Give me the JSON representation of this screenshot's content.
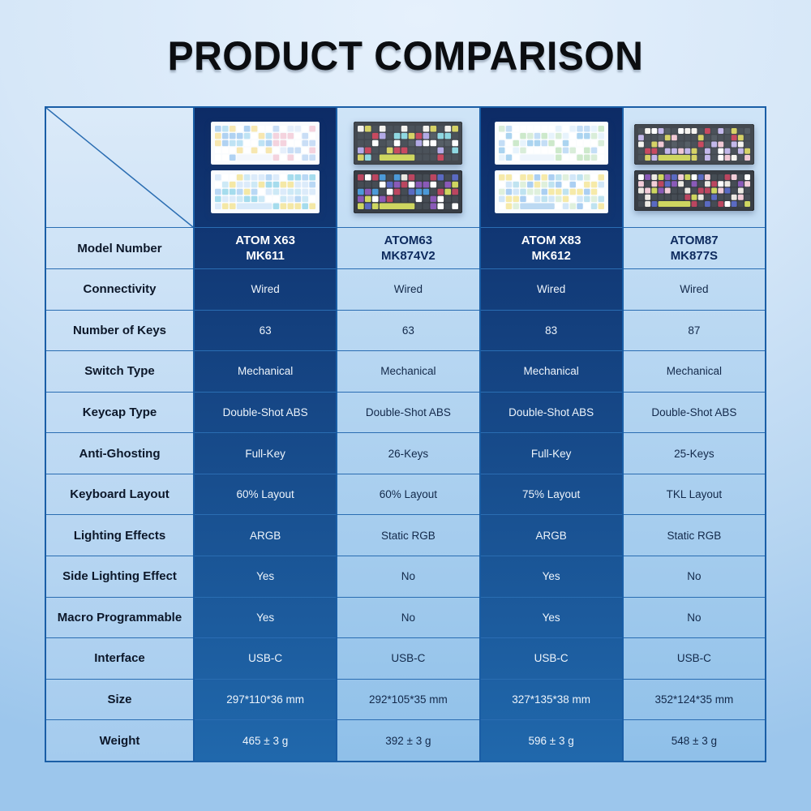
{
  "title": "PRODUCT COMPARISON",
  "table": {
    "model_row_label": "Model Number",
    "products": [
      {
        "model": [
          "ATOM X63",
          "MK611"
        ],
        "theme": "dark",
        "keyboards": [
          {
            "w": 134,
            "h": 53,
            "cols": 14,
            "body": "#fafcfe",
            "edge": "#e4eaf2",
            "space": "#f3f7fc",
            "palette": [
              "#ffffff",
              "#c9def6",
              "#b0d2f2",
              "#e6effb",
              "#f7e7b0",
              "#f4d3de",
              "#bfe3f4"
            ],
            "base": 38,
            "seed": 11
          },
          {
            "w": 134,
            "h": 53,
            "cols": 14,
            "body": "#fafcfe",
            "edge": "#e4eaf2",
            "space": "#d8eafa",
            "palette": [
              "#dcebfa",
              "#b9d8f5",
              "#a5dced",
              "#f4e8a6",
              "#ffffff",
              "#cde9f6"
            ],
            "base": 30,
            "seed": 23
          }
        ]
      },
      {
        "model": [
          "ATOM63",
          "MK874V2"
        ],
        "theme": "light",
        "keyboards": [
          {
            "w": 134,
            "h": 53,
            "cols": 14,
            "body": "#43484f",
            "edge": "#2e3338",
            "space": "#ced660",
            "palette": [
              "#4b525a",
              "#f4f2ee",
              "#ffffff",
              "#d6d266",
              "#b3aae6",
              "#8fd8e2",
              "#c84a60",
              "#565e66"
            ],
            "base": 34,
            "seed": 5
          },
          {
            "w": 134,
            "h": 53,
            "cols": 14,
            "body": "#383d44",
            "edge": "#23272c",
            "space": "#ced660",
            "palette": [
              "#454c54",
              "#bb4660",
              "#5a6ac2",
              "#8a5ab8",
              "#ffffff",
              "#e9e7e1",
              "#ced660",
              "#4c9ad8"
            ],
            "base": 30,
            "seed": 17
          }
        ]
      },
      {
        "model": [
          "ATOM X83",
          "MK612"
        ],
        "theme": "dark",
        "keyboards": [
          {
            "w": 140,
            "h": 53,
            "cols": 15,
            "body": "#fbfdfe",
            "edge": "#e6ecf3",
            "space": "#eef5fc",
            "palette": [
              "#ffffff",
              "#c4def6",
              "#abd4f0",
              "#d9edd9",
              "#e7f3fc",
              "#cde9cb"
            ],
            "base": 36,
            "seed": 9
          },
          {
            "w": 140,
            "h": 53,
            "cols": 15,
            "body": "#fbfdfe",
            "edge": "#e6ecf3",
            "space": "#bcd9f2",
            "palette": [
              "#f6eaa9",
              "#d2e7f8",
              "#abcff2",
              "#bfe3f0",
              "#ffffff",
              "#dff0dc"
            ],
            "base": 26,
            "seed": 31
          }
        ]
      },
      {
        "model": [
          "ATOM87",
          "MK877S"
        ],
        "theme": "light",
        "keyboards": [
          {
            "w": 148,
            "h": 50,
            "cols": 17,
            "body": "#43484f",
            "edge": "#2e3338",
            "space": "#ced660",
            "palette": [
              "#4b525a",
              "#f6f4f0",
              "#ffffff",
              "#d6d266",
              "#c3b8ea",
              "#f0c8d4",
              "#c84a60",
              "#565e66"
            ],
            "base": 36,
            "seed": 13
          },
          {
            "w": 148,
            "h": 50,
            "cols": 17,
            "body": "#383d44",
            "edge": "#23272c",
            "space": "#ced660",
            "palette": [
              "#454c54",
              "#bb4660",
              "#5a6ac2",
              "#ffffff",
              "#ece9e3",
              "#ced660",
              "#8a5ab8",
              "#f2cdd8"
            ],
            "base": 32,
            "seed": 27
          }
        ]
      }
    ],
    "rows": [
      {
        "label": "Connectivity",
        "values": [
          "Wired",
          "Wired",
          "Wired",
          "Wired"
        ]
      },
      {
        "label": "Number of Keys",
        "values": [
          "63",
          "63",
          "83",
          "87"
        ]
      },
      {
        "label": "Switch Type",
        "values": [
          "Mechanical",
          "Mechanical",
          "Mechanical",
          "Mechanical"
        ]
      },
      {
        "label": "Keycap Type",
        "values": [
          "Double-Shot ABS",
          "Double-Shot ABS",
          "Double-Shot ABS",
          "Double-Shot ABS"
        ]
      },
      {
        "label": "Anti-Ghosting",
        "values": [
          "Full-Key",
          "26-Keys",
          "Full-Key",
          "25-Keys"
        ]
      },
      {
        "label": "Keyboard Layout",
        "values": [
          "60% Layout",
          "60% Layout",
          "75% Layout",
          "TKL Layout"
        ]
      },
      {
        "label": "Lighting Effects",
        "values": [
          "ARGB",
          "Static RGB",
          "ARGB",
          "Static RGB"
        ]
      },
      {
        "label": "Side Lighting Effect",
        "values": [
          "Yes",
          "No",
          "Yes",
          "No"
        ]
      },
      {
        "label": "Macro Programmable",
        "values": [
          "Yes",
          "No",
          "Yes",
          "No"
        ]
      },
      {
        "label": "Interface",
        "values": [
          "USB-C",
          "USB-C",
          "USB-C",
          "USB-C"
        ]
      },
      {
        "label": "Size",
        "values": [
          "297*110*36 mm",
          "292*105*35 mm",
          "327*135*38 mm",
          "352*124*35 mm"
        ]
      },
      {
        "label": "Weight",
        "values": [
          "465 ± 3 g",
          "392 ± 3 g",
          "596 ± 3 g",
          "548 ± 3 g"
        ]
      }
    ],
    "colors": {
      "dark_column_top": "#0d2b66",
      "dark_column_bottom": "#2068ac",
      "light_column_top": "#cfe4f7",
      "light_column_bottom": "#8fc0e9",
      "label_column_top": "#dbeaf9",
      "label_column_bottom": "#a4cbee",
      "grid_line": "#2a6db2",
      "outer_border": "#1a5ea6",
      "text_on_dark": "#edf4fb",
      "text_on_light": "#13294a",
      "title_color": "#0b0d10"
    }
  }
}
